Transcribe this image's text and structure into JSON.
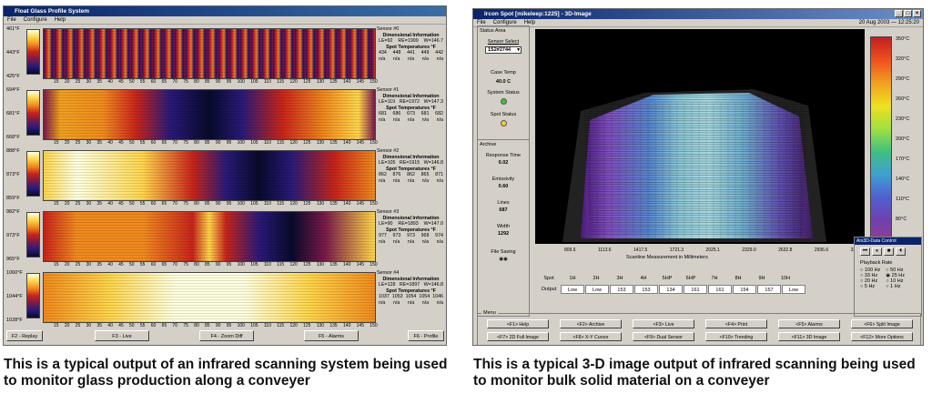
{
  "left": {
    "title": "Float Glass Profile System",
    "menu": [
      "File",
      "Configure",
      "Help"
    ],
    "x_ticks": [
      "15",
      "20",
      "25",
      "30",
      "35",
      "40",
      "45",
      "50",
      "55",
      "60",
      "65",
      "70",
      "75",
      "80",
      "85",
      "90",
      "95",
      "100",
      "105",
      "110",
      "115",
      "120",
      "125",
      "130",
      "135",
      "140",
      "145",
      "150"
    ],
    "sensors": [
      {
        "name": "Sensor #0",
        "top": "461°F",
        "mid": "443°F",
        "bot": "425°F",
        "info_title": "Dimensional Information",
        "le": "LE=92",
        "re": "RE=1909",
        "w": "W=146.7",
        "spot_title": "Spot Temperatures °F",
        "spots": [
          "434",
          "448",
          "441",
          "449",
          "442"
        ],
        "extra": [
          "n/a",
          "n/a",
          "n/a",
          "n/a",
          "n/a"
        ]
      },
      {
        "name": "Sensor #1",
        "top": "694°F",
        "mid": "681°F",
        "bot": "668°F",
        "info_title": "Dimensional Information",
        "le": "LE=119",
        "re": "RE=1972",
        "w": "W=147.3",
        "spot_title": "Spot Temperatures °F",
        "spots": [
          "681",
          "686",
          "673",
          "681",
          "682"
        ],
        "extra": [
          "n/a",
          "n/a",
          "n/a",
          "n/a",
          "n/a"
        ]
      },
      {
        "name": "Sensor #2",
        "top": "888°F",
        "mid": "873°F",
        "bot": "859°F",
        "info_title": "Dimensional Information",
        "le": "LE=105",
        "re": "RE=1915",
        "w": "W=146.8",
        "spot_title": "Spot Temperatures °F",
        "spots": [
          "862",
          "876",
          "862",
          "865",
          "871"
        ],
        "extra": [
          "n/a",
          "n/a",
          "n/a",
          "n/a",
          "n/a"
        ]
      },
      {
        "name": "Sensor #3",
        "top": "982°F",
        "mid": "973°F",
        "bot": "965°F",
        "info_title": "Dimensional Information",
        "le": "LE=90",
        "re": "RE=1893",
        "w": "W=147.0",
        "spot_title": "Spot Temperatures °F",
        "spots": [
          "977",
          "973",
          "973",
          "968",
          "974"
        ],
        "extra": [
          "n/a",
          "n/a",
          "n/a",
          "n/a",
          "n/a"
        ]
      },
      {
        "name": "Sensor #4",
        "top": "1060°F",
        "mid": "1044°F",
        "bot": "1028°F",
        "info_title": "Dimensional Information",
        "le": "LE=128",
        "re": "RE=1897",
        "w": "W=146.8",
        "spot_title": "Spot Temperatures °F",
        "spots": [
          "1037",
          "1053",
          "1054",
          "1054",
          "1046"
        ],
        "extra": [
          "n/a",
          "n/a",
          "n/a",
          "n/a",
          "n/a"
        ]
      }
    ],
    "buttons": [
      "F2 - Replay",
      "F3 - Live",
      "F4 - Zoom Diff",
      "F5 - Alarms",
      "F6 - Profile"
    ]
  },
  "right": {
    "title": "Ircon Spot [mikeleep:1225] - 3D-Image",
    "date": "20 Aug 2003 — 12:25:20",
    "menu": [
      "File",
      "Configure",
      "Help"
    ],
    "status": {
      "heading": "Status Area",
      "sensor_select_label": "Sensor Select",
      "sensor_select_value": "1S2#2744",
      "case_temp_label": "Case Temp",
      "case_temp_value": "40.0 C",
      "system_status_label": "System Status",
      "spot_status_label": "Spot Status",
      "archive_label": "Archive",
      "response_time_label": "Response Time",
      "response_time_value": "0.02",
      "emissivity_label": "Emissivity",
      "emissivity_value": "0.60",
      "lines_label": "Lines",
      "lines_value": "687",
      "width_label": "Width",
      "width_value": "1292",
      "file_saving_label": "File Saving"
    },
    "x_ticks": [
      "809.6",
      "1113.6",
      "1417.5",
      "1721.3",
      "2025.1",
      "2329.0",
      "2632.8",
      "2936.6",
      "3240.5"
    ],
    "x_label": "Scanline Measurement in Millimeters",
    "palette": [
      "350°C",
      "320°C",
      "290°C",
      "260°C",
      "230°C",
      "200°C",
      "170°C",
      "140°C",
      "110°C",
      "80°C",
      "50°C"
    ],
    "spot_header": [
      "Spot",
      "1H",
      "2H",
      "3H",
      "4H",
      "5HP",
      "6HP",
      "7H",
      "8H",
      "9H",
      "10H"
    ],
    "output_label": "Output",
    "output_values": [
      "Low",
      "Low",
      "153",
      "153",
      "134",
      "161",
      "161",
      "154",
      "157",
      "Low"
    ],
    "playback": {
      "title": "Playback Rate",
      "options_left": [
        "100 Hz",
        "33 Hz",
        "20 Hz",
        "5 Hz"
      ],
      "options_right": [
        "50 Hz",
        "25 Hz",
        "10 Hz",
        "1 Hz"
      ]
    },
    "menu_label": "Menu",
    "buttons_row1": [
      "<F1> Help",
      "<F2> Archive",
      "<F3> Live",
      "<F4> Print",
      "<F5> Alarms",
      "<F6> Split Image"
    ],
    "buttons_row2": [
      "<F7> 2D Full Image",
      "<F8> X-Y Cursor",
      "<F9> Dual Sensor",
      "<F10> Trending",
      "<F11> 3D Image",
      "<F12> More Options"
    ]
  },
  "captions": {
    "left": "This is a typical output of an infrared scanning system being used to monitor glass production along a conveyer",
    "right": "This is a typical 3-D image output of infrared scanning being used to monitor bulk solid material on a conveyer"
  }
}
